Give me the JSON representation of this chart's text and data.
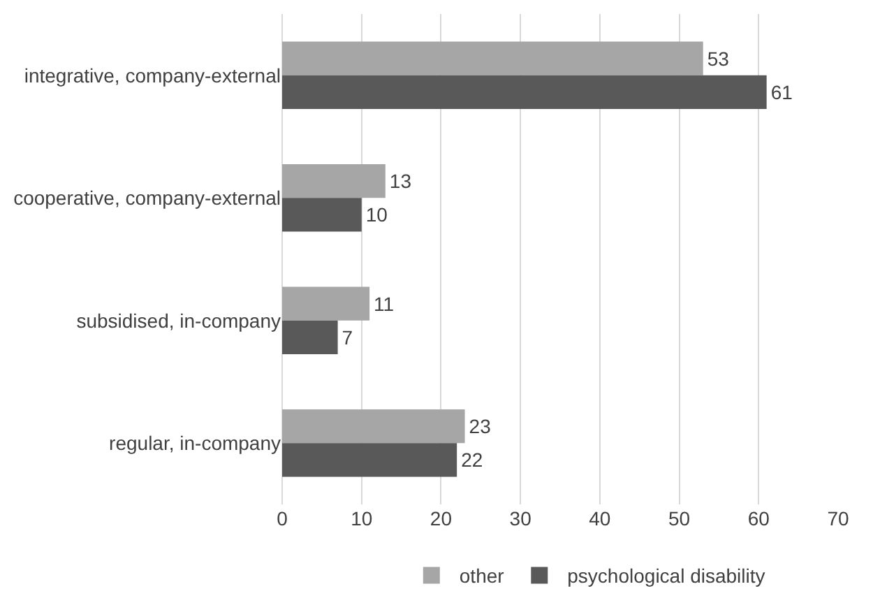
{
  "chart_data": {
    "type": "bar",
    "orientation": "horizontal",
    "categories": [
      "integrative, company-external",
      "cooperative, company-external",
      "subsidised, in-company",
      "regular, in-company"
    ],
    "series": [
      {
        "name": "other",
        "color": "#a6a6a6",
        "values": [
          53,
          13,
          11,
          23
        ]
      },
      {
        "name": "psychological disability",
        "color": "#595959",
        "values": [
          61,
          10,
          7,
          22
        ]
      }
    ],
    "xlim": [
      0,
      70
    ],
    "xticks": [
      0,
      10,
      20,
      30,
      40,
      50,
      60,
      70
    ],
    "grid": "x",
    "legend": "bottom",
    "data_labels": true
  }
}
